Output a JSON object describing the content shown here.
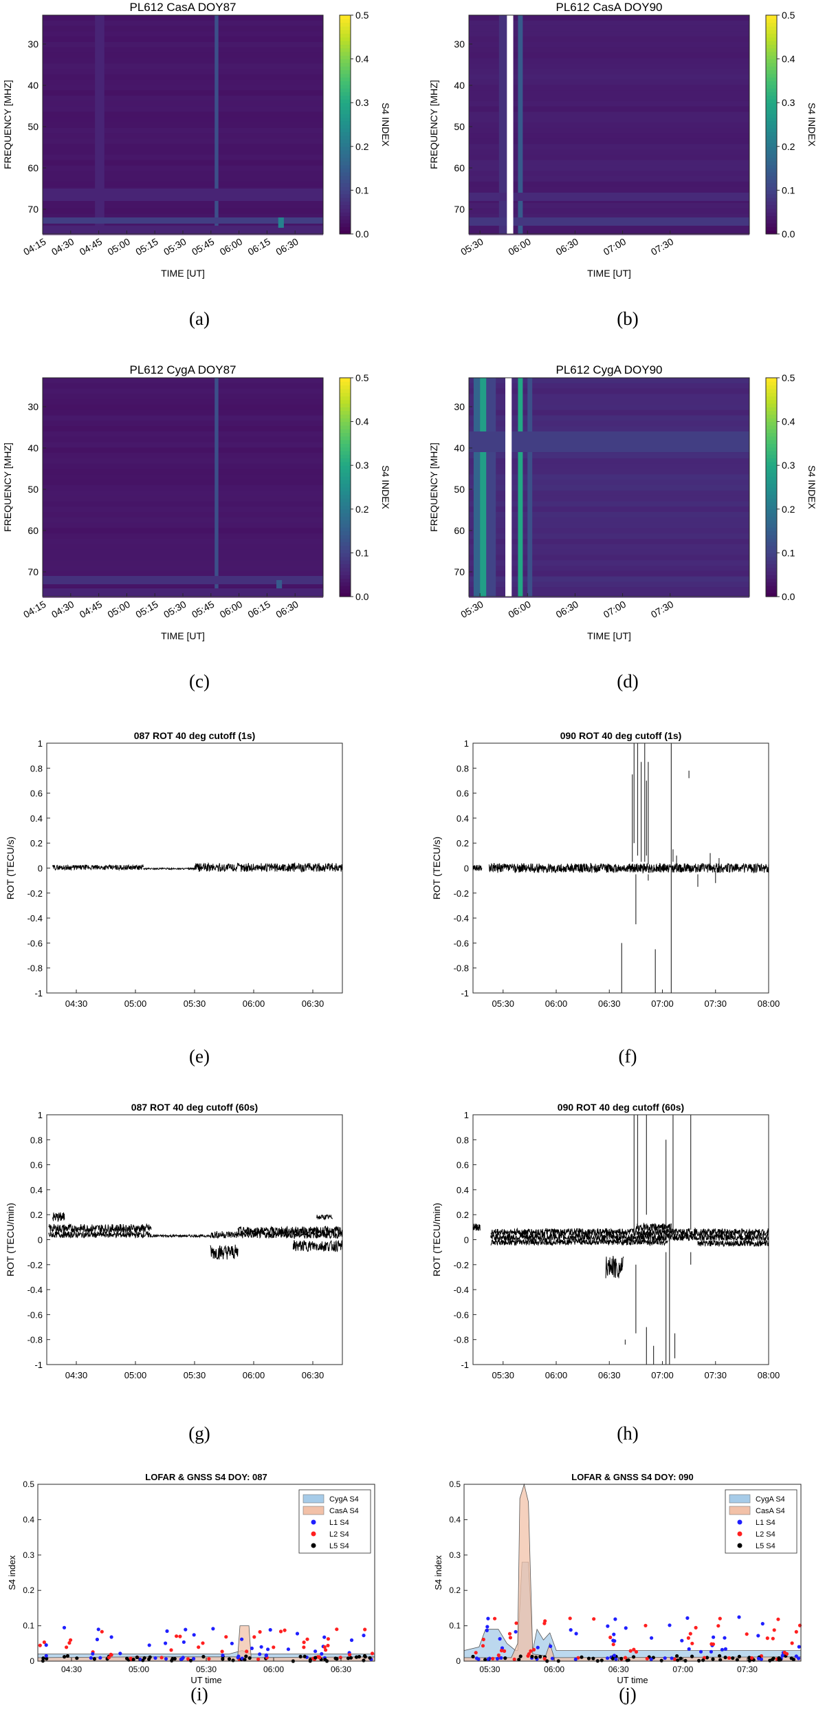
{
  "colors": {
    "viridis": [
      "#440154",
      "#482475",
      "#414487",
      "#355f8d",
      "#2a788e",
      "#21918c",
      "#22a884",
      "#44bf70",
      "#7ad151",
      "#bddf26",
      "#fde725"
    ],
    "rot_line": "#000000",
    "cyg_fill": "#a6cbe8",
    "cas_fill": "#f2c1a8",
    "l1": "#1f1fff",
    "l2": "#ff1f1f",
    "l5": "#000000"
  },
  "captions": [
    "(a)",
    "(b)",
    "(c)",
    "(d)",
    "(e)",
    "(f)",
    "(g)",
    "(h)",
    "(i)",
    "(j)"
  ],
  "chart_data": [
    {
      "type": "heatmap",
      "title": "PL612 CasA DOY87",
      "xlabel": "TIME [UT]",
      "ylabel": "FREQUENCY [MHZ]",
      "colorbar_label": "S4 INDEX",
      "x_ticks": [
        "04:15",
        "04:30",
        "04:45",
        "05:00",
        "05:15",
        "05:30",
        "05:45",
        "06:00",
        "06:15",
        "06:30"
      ],
      "x_tick_min": [
        255,
        270,
        285,
        300,
        315,
        330,
        345,
        360,
        375,
        390
      ],
      "xlim_min": [
        255,
        405
      ],
      "y_ticks": [
        30,
        40,
        50,
        60,
        70
      ],
      "ylim": [
        23,
        76
      ],
      "colorbar_ticks": [
        "0.0",
        "0.1",
        "0.2",
        "0.3",
        "0.4",
        "0.5"
      ],
      "clim": [
        0,
        0.5
      ],
      "background_s4": 0.03,
      "features": [
        {
          "kind": "time_band",
          "t0": 347,
          "t1": 349,
          "s4": 0.12
        },
        {
          "kind": "time_band",
          "t0": 283,
          "t1": 288,
          "s4": 0.05
        },
        {
          "kind": "freq_band",
          "f0": 65,
          "f1": 68,
          "s4": 0.05
        },
        {
          "kind": "freq_band",
          "f0": 72,
          "f1": 73.5,
          "s4": 0.09
        },
        {
          "kind": "freq_band",
          "f0": 74,
          "f1": 76,
          "s4": 0.05
        },
        {
          "kind": "patch",
          "t0": 381,
          "t1": 384,
          "f0": 72,
          "f1": 74.5,
          "s4": 0.22
        }
      ]
    },
    {
      "type": "heatmap",
      "title": "PL612 CasA DOY90",
      "xlabel": "TIME [UT]",
      "ylabel": "FREQUENCY [MHZ]",
      "colorbar_label": "S4 INDEX",
      "x_ticks": [
        "05:30",
        "06:00",
        "06:30",
        "07:00",
        "07:30"
      ],
      "x_tick_min": [
        330,
        360,
        390,
        420,
        450
      ],
      "xlim_min": [
        323,
        500
      ],
      "y_ticks": [
        30,
        40,
        50,
        60,
        70
      ],
      "ylim": [
        23,
        76
      ],
      "colorbar_ticks": [
        "0.0",
        "0.1",
        "0.2",
        "0.3",
        "0.4",
        "0.5"
      ],
      "clim": [
        0,
        0.5
      ],
      "background_s4": 0.04,
      "features": [
        {
          "kind": "time_band",
          "t0": 342,
          "t1": 347,
          "s4": 0.07
        },
        {
          "kind": "time_band",
          "t0": 354,
          "t1": 357,
          "s4": 0.14
        },
        {
          "kind": "freq_band",
          "f0": 66,
          "f1": 68,
          "s4": 0.06
        },
        {
          "kind": "freq_band",
          "f0": 72,
          "f1": 74,
          "s4": 0.08
        },
        {
          "kind": "gap",
          "t0": 347,
          "t1": 351
        }
      ]
    },
    {
      "type": "heatmap",
      "title": "PL612 CygA DOY87",
      "xlabel": "TIME [UT]",
      "ylabel": "FREQUENCY [MHZ]",
      "colorbar_label": "S4 INDEX",
      "x_ticks": [
        "04:15",
        "04:30",
        "04:45",
        "05:00",
        "05:15",
        "05:30",
        "05:45",
        "06:00",
        "06:15",
        "06:30"
      ],
      "x_tick_min": [
        255,
        270,
        285,
        300,
        315,
        330,
        345,
        360,
        375,
        390
      ],
      "xlim_min": [
        255,
        405
      ],
      "y_ticks": [
        30,
        40,
        50,
        60,
        70
      ],
      "ylim": [
        23,
        76
      ],
      "colorbar_ticks": [
        "0.0",
        "0.1",
        "0.2",
        "0.3",
        "0.4",
        "0.5"
      ],
      "clim": [
        0,
        0.5
      ],
      "background_s4": 0.03,
      "features": [
        {
          "kind": "time_band",
          "t0": 347,
          "t1": 349,
          "s4": 0.12
        },
        {
          "kind": "freq_band",
          "f0": 71,
          "f1": 73,
          "s4": 0.07
        },
        {
          "kind": "freq_band",
          "f0": 74,
          "f1": 76,
          "s4": 0.05
        },
        {
          "kind": "patch",
          "t0": 380,
          "t1": 383,
          "f0": 72,
          "f1": 74,
          "s4": 0.14
        }
      ]
    },
    {
      "type": "heatmap",
      "title": "PL612 CygA DOY90",
      "xlabel": "TIME [UT]",
      "ylabel": "FREQUENCY [MHZ]",
      "colorbar_label": "S4 INDEX",
      "x_ticks": [
        "05:30",
        "06:00",
        "06:30",
        "07:00",
        "07:30"
      ],
      "x_tick_min": [
        330,
        360,
        390,
        420,
        450
      ],
      "xlim_min": [
        323,
        500
      ],
      "y_ticks": [
        30,
        40,
        50,
        60,
        70
      ],
      "ylim": [
        23,
        76
      ],
      "colorbar_ticks": [
        "0.0",
        "0.1",
        "0.2",
        "0.3",
        "0.4",
        "0.5"
      ],
      "clim": [
        0,
        0.5
      ],
      "background_s4": 0.06,
      "features": [
        {
          "kind": "time_band",
          "t0": 326,
          "t1": 330,
          "s4": 0.16
        },
        {
          "kind": "time_band",
          "t0": 330,
          "t1": 334,
          "s4": 0.28
        },
        {
          "kind": "time_band",
          "t0": 334,
          "t1": 340,
          "s4": 0.1
        },
        {
          "kind": "time_band",
          "t0": 354,
          "t1": 357,
          "s4": 0.3
        },
        {
          "kind": "time_band",
          "t0": 360,
          "t1": 363,
          "s4": 0.12
        },
        {
          "kind": "freq_band",
          "f0": 36,
          "f1": 41,
          "s4": 0.09
        },
        {
          "kind": "gap",
          "t0": 346,
          "t1": 350
        }
      ]
    },
    {
      "type": "line",
      "title": "087 ROT 40 deg cutoff (1s)",
      "xlabel": "",
      "ylabel": "ROT (TECU/s)",
      "x_ticks": [
        "04:30",
        "05:00",
        "05:30",
        "06:00",
        "06:30"
      ],
      "x_tick_min": [
        270,
        300,
        330,
        360,
        390
      ],
      "xlim_min": [
        255,
        405
      ],
      "y_ticks": [
        "-1",
        "-0.8",
        "-0.6",
        "-0.4",
        "-0.2",
        "0",
        "0.2",
        "0.4",
        "0.6",
        "0.8",
        "1"
      ],
      "ylim": [
        -1,
        1
      ],
      "series": [
        {
          "t0": 258,
          "t1": 304,
          "center": 0.005,
          "amp": 0.04
        },
        {
          "t0": 304,
          "t1": 330,
          "center": -0.005,
          "amp": 0.012
        },
        {
          "t0": 330,
          "t1": 405,
          "center": 0.005,
          "amp": 0.07
        }
      ],
      "spikes": []
    },
    {
      "type": "line",
      "title": "090 ROT 40 deg cutoff (1s)",
      "xlabel": "",
      "ylabel": "ROT (TECU/s)",
      "x_ticks": [
        "05:30",
        "06:00",
        "06:30",
        "07:00",
        "07:30",
        "08:00"
      ],
      "x_tick_min": [
        330,
        360,
        390,
        420,
        450,
        480
      ],
      "xlim_min": [
        313,
        480
      ],
      "y_ticks": [
        "-1",
        "-0.8",
        "-0.6",
        "-0.4",
        "-0.2",
        "0",
        "0.2",
        "0.4",
        "0.6",
        "0.8",
        "1"
      ],
      "ylim": [
        -1,
        1
      ],
      "series": [
        {
          "t0": 313,
          "t1": 318,
          "center": 0,
          "amp": 0.05
        },
        {
          "t0": 322,
          "t1": 480,
          "center": 0,
          "amp": 0.075
        }
      ],
      "spikes": [
        [
          403,
          0.05,
          0.75
        ],
        [
          404,
          0.2,
          1
        ],
        [
          406,
          0.1,
          1
        ],
        [
          408,
          0.05,
          0.85
        ],
        [
          410,
          0.05,
          1
        ],
        [
          411,
          0.1,
          0.7
        ],
        [
          412,
          0.03,
          0.85
        ],
        [
          435,
          0.72,
          0.78
        ],
        [
          397,
          -0.6,
          -1
        ],
        [
          405,
          -0.05,
          -0.45
        ],
        [
          412,
          -0.05,
          -0.1
        ],
        [
          416,
          -0.65,
          -1
        ],
        [
          425,
          -1,
          1
        ],
        [
          426,
          0.05,
          0.15
        ],
        [
          428,
          0,
          0.1
        ],
        [
          440,
          -0.05,
          -0.15
        ],
        [
          447,
          0.02,
          0.12
        ],
        [
          450,
          -0.02,
          -0.12
        ],
        [
          452,
          0.02,
          0.08
        ]
      ]
    },
    {
      "type": "line",
      "title": "087 ROT 40 deg cutoff (60s)",
      "xlabel": "",
      "ylabel": "ROT (TECU/min)",
      "x_ticks": [
        "04:30",
        "05:00",
        "05:30",
        "06:00",
        "06:30"
      ],
      "x_tick_min": [
        270,
        300,
        330,
        360,
        390
      ],
      "xlim_min": [
        255,
        405
      ],
      "y_ticks": [
        "-1",
        "-0.8",
        "-0.6",
        "-0.4",
        "-0.2",
        "0",
        "0.2",
        "0.4",
        "0.6",
        "0.8",
        "1"
      ],
      "ylim": [
        -1,
        1
      ],
      "series": [
        {
          "t0": 256,
          "t1": 308,
          "center": 0.09,
          "amp": 0.07
        },
        {
          "t0": 256,
          "t1": 308,
          "center": 0.04,
          "amp": 0.05
        },
        {
          "t0": 258,
          "t1": 264,
          "center": 0.18,
          "amp": 0.08
        },
        {
          "t0": 308,
          "t1": 338,
          "center": 0.03,
          "amp": 0.02
        },
        {
          "t0": 338,
          "t1": 352,
          "center": -0.1,
          "amp": 0.12
        },
        {
          "t0": 338,
          "t1": 405,
          "center": 0.04,
          "amp": 0.06
        },
        {
          "t0": 352,
          "t1": 405,
          "center": 0.07,
          "amp": 0.07
        },
        {
          "t0": 380,
          "t1": 405,
          "center": -0.05,
          "amp": 0.09
        },
        {
          "t0": 392,
          "t1": 400,
          "center": 0.18,
          "amp": 0.04
        }
      ],
      "spikes": []
    },
    {
      "type": "line",
      "title": "090 ROT 40 deg cutoff (60s)",
      "xlabel": "",
      "ylabel": "ROT (TECU/min)",
      "x_ticks": [
        "05:30",
        "06:00",
        "06:30",
        "07:00",
        "07:30",
        "08:00"
      ],
      "x_tick_min": [
        330,
        360,
        390,
        420,
        450,
        480
      ],
      "xlim_min": [
        313,
        480
      ],
      "y_ticks": [
        "-1",
        "-0.8",
        "-0.6",
        "-0.4",
        "-0.2",
        "0",
        "0.2",
        "0.4",
        "0.6",
        "0.8",
        "1"
      ],
      "ylim": [
        -1,
        1
      ],
      "series": [
        {
          "t0": 313,
          "t1": 317,
          "center": 0.1,
          "amp": 0.06
        },
        {
          "t0": 323,
          "t1": 480,
          "center": 0.02,
          "amp": 0.06
        },
        {
          "t0": 323,
          "t1": 480,
          "center": 0.06,
          "amp": 0.06
        },
        {
          "t0": 323,
          "t1": 423,
          "center": -0.02,
          "amp": 0.05
        },
        {
          "t0": 388,
          "t1": 398,
          "center": -0.22,
          "amp": 0.18
        },
        {
          "t0": 405,
          "t1": 425,
          "center": 0.1,
          "amp": 0.06
        },
        {
          "t0": 440,
          "t1": 480,
          "center": -0.03,
          "amp": 0.05
        }
      ],
      "spikes": [
        [
          404,
          0.05,
          1
        ],
        [
          406,
          0.1,
          1
        ],
        [
          411,
          0.2,
          1
        ],
        [
          422,
          0.05,
          0.8
        ],
        [
          426,
          0.05,
          1
        ],
        [
          436,
          0.08,
          1
        ],
        [
          399,
          -0.8,
          -0.84
        ],
        [
          405,
          -0.2,
          -0.75
        ],
        [
          411,
          -0.7,
          -1
        ],
        [
          415,
          -0.85,
          -1
        ],
        [
          422,
          -0.1,
          -1
        ],
        [
          424,
          0.1,
          -1
        ],
        [
          427,
          -0.75,
          -0.95
        ],
        [
          436,
          -0.1,
          -0.2
        ]
      ]
    },
    {
      "type": "area",
      "title": "LOFAR & GNSS S4 DOY: 087",
      "xlabel": "UT time",
      "ylabel": "S4 index",
      "x_ticks": [
        "04:30",
        "05:00",
        "05:30",
        "06:00",
        "06:30"
      ],
      "x_tick_min": [
        270,
        300,
        330,
        360,
        390
      ],
      "xlim_min": [
        255,
        405
      ],
      "y_ticks": [
        "0",
        "0.1",
        "0.2",
        "0.3",
        "0.4",
        "0.5"
      ],
      "ylim": [
        0,
        0.5
      ],
      "legend": [
        "CygA S4",
        "CasA S4",
        "L1 S4",
        "L2 S4",
        "L5 S4"
      ],
      "legend_position": "top-right",
      "cyga_s4": [
        [
          255,
          0.02
        ],
        [
          300,
          0.02
        ],
        [
          340,
          0.02
        ],
        [
          346,
          0.03
        ],
        [
          350,
          0.02
        ],
        [
          405,
          0.02
        ]
      ],
      "casa_s4": [
        [
          255,
          0.01
        ],
        [
          300,
          0.012
        ],
        [
          344,
          0.012
        ],
        [
          345,
          0.1
        ],
        [
          349,
          0.1
        ],
        [
          350,
          0.01
        ],
        [
          405,
          0.012
        ]
      ],
      "gnss_seed": 87,
      "gnss_points": 150,
      "gnss_ymax": 0.09
    },
    {
      "type": "area",
      "title": "LOFAR & GNSS S4 DOY: 090",
      "xlabel": "UT time",
      "ylabel": "S4 index",
      "x_ticks": [
        "05:30",
        "06:00",
        "06:30",
        "07:00",
        "07:30"
      ],
      "x_tick_min": [
        330,
        360,
        390,
        420,
        450
      ],
      "xlim_min": [
        318,
        475
      ],
      "y_ticks": [
        "0",
        "0.1",
        "0.2",
        "0.3",
        "0.4",
        "0.5"
      ],
      "ylim": [
        0,
        0.5
      ],
      "legend": [
        "CygA S4",
        "CasA S4",
        "L1 S4",
        "L2 S4",
        "L5 S4"
      ],
      "legend_position": "top-right",
      "cyga_s4": [
        [
          318,
          0.03
        ],
        [
          325,
          0.04
        ],
        [
          328,
          0.09
        ],
        [
          334,
          0.09
        ],
        [
          338,
          0.05
        ],
        [
          342,
          0.03
        ],
        [
          343,
          0.03
        ],
        [
          345,
          0.28
        ],
        [
          348,
          0.28
        ],
        [
          350,
          0.03
        ],
        [
          352,
          0.09
        ],
        [
          355,
          0.06
        ],
        [
          358,
          0.08
        ],
        [
          361,
          0.03
        ],
        [
          400,
          0.03
        ],
        [
          430,
          0.03
        ],
        [
          475,
          0.03
        ]
      ],
      "casa_s4": [
        [
          318,
          0.01
        ],
        [
          340,
          0.01
        ],
        [
          343,
          0.05
        ],
        [
          344,
          0.46
        ],
        [
          346,
          0.5
        ],
        [
          348,
          0.45
        ],
        [
          350,
          0.02
        ],
        [
          356,
          0.015
        ],
        [
          358,
          0.05
        ],
        [
          360,
          0.01
        ],
        [
          475,
          0.012
        ]
      ],
      "gnss_seed": 90,
      "gnss_points": 170,
      "gnss_ymax": 0.12
    }
  ]
}
